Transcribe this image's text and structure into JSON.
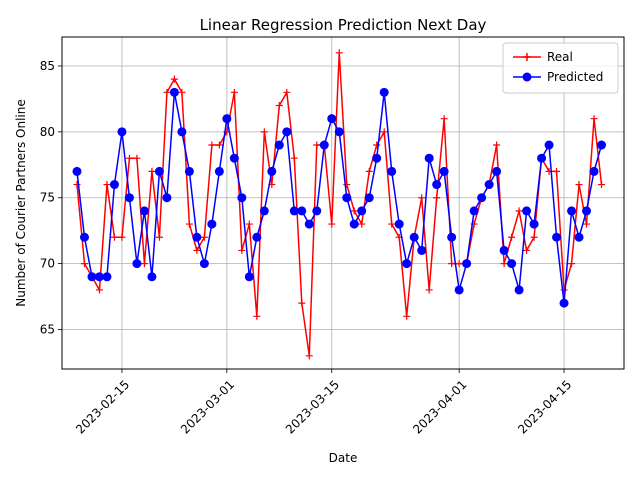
{
  "chart_data": {
    "type": "line",
    "title": "Linear Regression Prediction Next Day",
    "xlabel": "Date",
    "ylabel": "Number of Courier Partners Online",
    "x_start": "2023-02-09",
    "x_end": "2023-04-21",
    "xlim": [
      "2023-02-07",
      "2023-04-23"
    ],
    "ylim": [
      62,
      87.2
    ],
    "x_ticks": [
      "2023-02-15",
      "2023-03-01",
      "2023-03-15",
      "2023-04-01",
      "2023-04-15"
    ],
    "y_ticks": [
      65,
      70,
      75,
      80,
      85
    ],
    "grid": true,
    "legend": "top-right",
    "series": [
      {
        "name": "Real",
        "color": "#ff0000",
        "marker": "plus",
        "values": [
          76,
          70,
          69,
          68,
          76,
          72,
          72,
          78,
          78,
          70,
          77,
          72,
          83,
          84,
          83,
          73,
          71,
          72,
          79,
          79,
          80,
          83,
          71,
          73,
          66,
          80,
          76,
          82,
          83,
          78,
          67,
          63,
          79,
          79,
          73,
          86,
          76,
          74,
          73,
          77,
          79,
          80,
          73,
          72,
          66,
          72,
          75,
          68,
          75,
          81,
          70,
          70,
          70,
          73,
          75,
          76,
          79,
          70,
          72,
          74,
          71,
          72,
          78,
          77,
          77,
          68,
          70,
          76,
          73,
          81,
          76
        ]
      },
      {
        "name": "Predicted",
        "color": "#0000ff",
        "marker": "circle",
        "values": [
          77,
          72,
          69,
          69,
          69,
          76,
          80,
          75,
          70,
          74,
          69,
          77,
          75,
          83,
          80,
          77,
          72,
          70,
          73,
          77,
          81,
          78,
          75,
          69,
          72,
          74,
          77,
          79,
          80,
          74,
          74,
          73,
          74,
          79,
          81,
          80,
          75,
          73,
          74,
          75,
          78,
          83,
          77,
          73,
          70,
          72,
          71,
          78,
          76,
          77,
          72,
          68,
          70,
          74,
          75,
          76,
          77,
          71,
          70,
          68,
          74,
          73,
          78,
          79,
          72,
          67,
          74,
          72,
          74,
          77,
          79
        ]
      }
    ]
  }
}
